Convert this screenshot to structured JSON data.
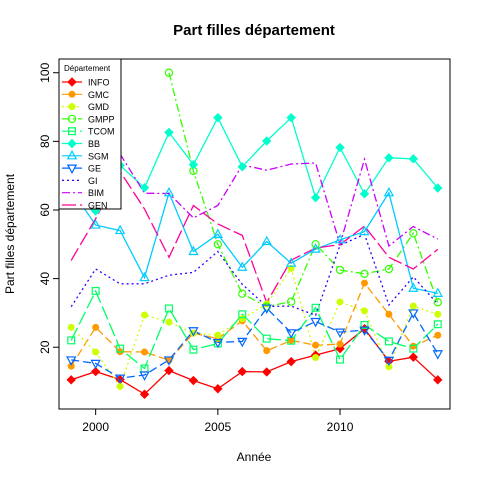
{
  "chart_data": {
    "type": "line",
    "title": "Part filles département",
    "xlabel": "Année",
    "ylabel": "Part filles département",
    "xlim": [
      1998.5,
      2014.5
    ],
    "ylim": [
      2,
      104
    ],
    "xticks": [
      2000,
      2005,
      2010
    ],
    "yticks": [
      20,
      40,
      60,
      80,
      100
    ],
    "legend": {
      "title": "Département",
      "position": "top-left"
    },
    "x": [
      1999,
      2000,
      2001,
      2002,
      2003,
      2004,
      2005,
      2006,
      2007,
      2008,
      2009,
      2010,
      2011,
      2012,
      2013,
      2014
    ],
    "series": [
      {
        "name": "INFO",
        "color": "#FF0000",
        "dash": "",
        "marker": "diamond",
        "values": [
          10.5,
          12.9,
          10.6,
          6.3,
          13.2,
          10.3,
          7.9,
          12.9,
          12.8,
          15.8,
          17.7,
          19.6,
          25.4,
          15.9,
          17.1,
          10.5
        ]
      },
      {
        "name": "GMC",
        "color": "#FF9900",
        "dash": "8 4",
        "marker": "dot",
        "values": [
          14.5,
          25.8,
          18.7,
          18.6,
          16.2,
          24.1,
          22.5,
          27.7,
          19.0,
          22.0,
          20.6,
          20.9,
          38.7,
          29.6,
          20.3,
          23.5
        ]
      },
      {
        "name": "GMD",
        "color": "#CCFF00",
        "dash": "2 3",
        "marker": "dot",
        "values": [
          25.8,
          18.6,
          8.6,
          29.4,
          27.3,
          24.1,
          23.5,
          28.3,
          32.6,
          43.0,
          17.0,
          33.2,
          30.6,
          14.3,
          32.0,
          29.6
        ]
      },
      {
        "name": "GMPP",
        "color": "#33FF00",
        "dash": "8 3 2 3",
        "marker": "circle",
        "values": [
          null,
          null,
          null,
          null,
          100.0,
          71.4,
          50.0,
          35.6,
          31.8,
          33.3,
          50.0,
          42.5,
          41.4,
          42.8,
          53.2,
          33.1
        ]
      },
      {
        "name": "TCOM",
        "color": "#00FF66",
        "dash": "14 4",
        "marker": "square",
        "values": [
          22.0,
          36.4,
          19.6,
          13.8,
          31.3,
          19.3,
          21.1,
          29.6,
          22.5,
          21.9,
          31.5,
          16.4,
          26.5,
          21.7,
          19.6,
          26.7
        ]
      },
      {
        "name": "BB",
        "color": "#00FFCC",
        "dash": "",
        "marker": "diamond",
        "values": [
          62.1,
          59.7,
          73.0,
          66.5,
          82.6,
          73.2,
          86.9,
          72.6,
          80.1,
          86.9,
          63.6,
          78.2,
          64.7,
          75.2,
          74.9,
          66.4
        ]
      },
      {
        "name": "SGM",
        "color": "#00CCFF",
        "dash": "",
        "marker": "triangle",
        "values": [
          66.0,
          55.6,
          54.0,
          40.3,
          65.0,
          47.9,
          52.9,
          43.3,
          50.8,
          44.5,
          48.6,
          51.3,
          53.7,
          65.0,
          37.2,
          35.7
        ]
      },
      {
        "name": "GE",
        "color": "#0066FF",
        "dash": "8 4",
        "marker": "triangle-down",
        "values": [
          16.3,
          15.3,
          11.0,
          11.9,
          16.3,
          24.8,
          21.4,
          21.7,
          31.4,
          24.2,
          27.5,
          24.4,
          25.0,
          16.2,
          30.0,
          18.1
        ]
      },
      {
        "name": "GI",
        "color": "#3300FF",
        "dash": "2 3",
        "marker": "none",
        "values": [
          31.8,
          42.8,
          38.5,
          38.5,
          41.0,
          41.8,
          47.9,
          38.3,
          31.9,
          32.0,
          29.3,
          49.7,
          52.9,
          32.3,
          40.5,
          32.6
        ]
      },
      {
        "name": "BIM",
        "color": "#CC00FF",
        "dash": "8 3 2 3",
        "marker": "none",
        "values": [
          null,
          null,
          76.3,
          64.9,
          64.8,
          57.7,
          61.3,
          73.1,
          71.6,
          73.4,
          73.7,
          50.0,
          74.8,
          49.5,
          55.2,
          51.5
        ]
      },
      {
        "name": "GEN",
        "color": "#FF0099",
        "dash": "14 4",
        "marker": "none",
        "values": [
          45.3,
          57.5,
          71.2,
          60.3,
          46.2,
          61.3,
          55.9,
          52.6,
          33.0,
          45.4,
          48.9,
          49.9,
          55.3,
          46.2,
          42.8,
          48.5
        ]
      }
    ]
  }
}
